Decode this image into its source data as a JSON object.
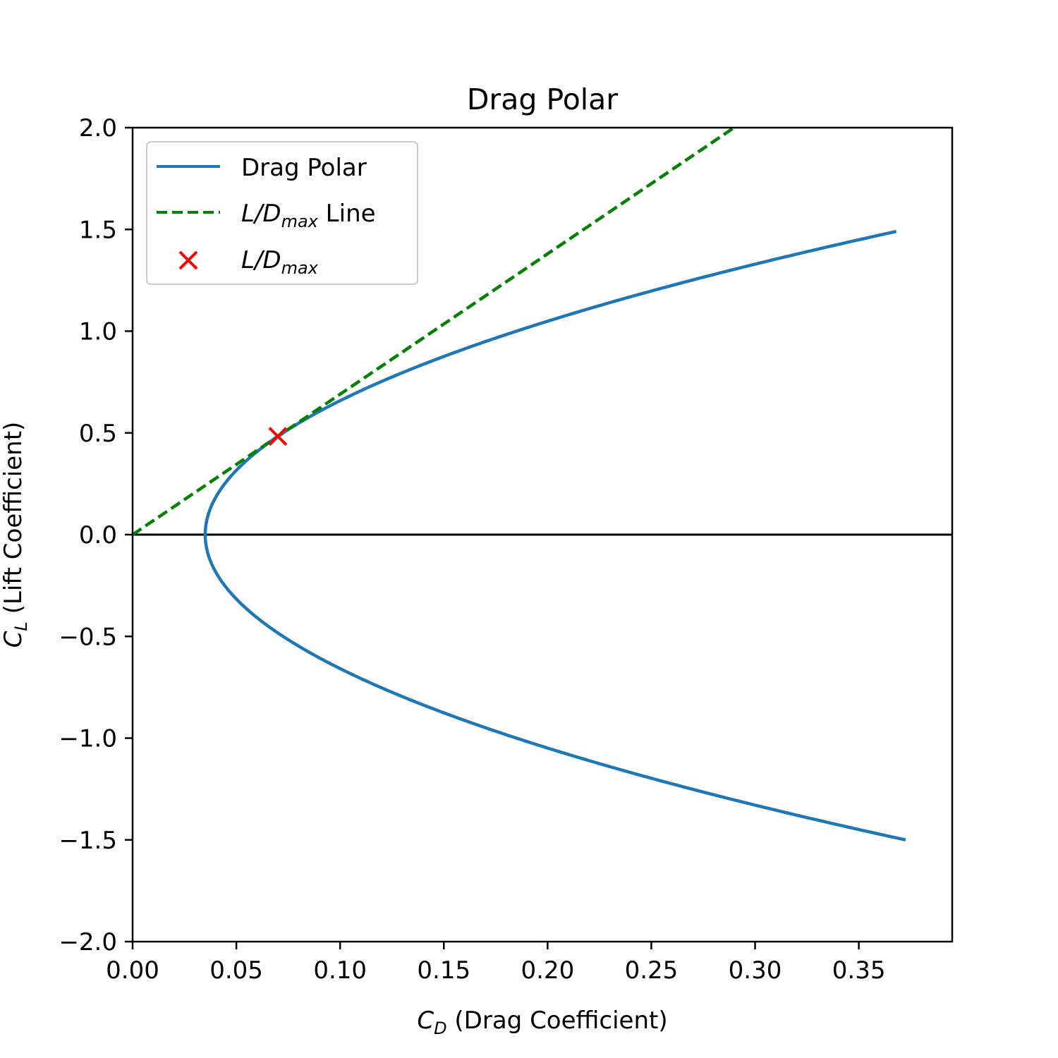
{
  "chart_data": {
    "type": "line",
    "title": "Drag Polar",
    "xlabel": {
      "symbol": "C",
      "sub": "D",
      "text": " (Drag Coefficient)"
    },
    "ylabel": {
      "symbol": "C",
      "sub": "L",
      "text": " (Lift Coefficient)"
    },
    "xlim": [
      0,
      0.395
    ],
    "ylim": [
      -2.0,
      2.0
    ],
    "xticks": [
      0.0,
      0.05,
      0.1,
      0.15,
      0.2,
      0.25,
      0.3,
      0.35
    ],
    "xtick_labels": [
      "0.00",
      "0.05",
      "0.10",
      "0.15",
      "0.20",
      "0.25",
      "0.30",
      "0.35"
    ],
    "yticks": [
      -2.0,
      -1.5,
      -1.0,
      -0.5,
      0.0,
      0.5,
      1.0,
      1.5,
      2.0
    ],
    "ytick_labels": [
      "−2.0",
      "−1.5",
      "−1.0",
      "−0.5",
      "0.0",
      "0.5",
      "1.0",
      "1.5",
      "2.0"
    ],
    "grid": false,
    "legend_position": "upper-left",
    "horizontal_reference_line": {
      "y": 0.0,
      "color": "#000000"
    },
    "series": [
      {
        "name": "Drag Polar",
        "kind": "line",
        "color": "#1f77b4",
        "style": "solid",
        "model": {
          "CD0": 0.035,
          "k": 0.15
        },
        "cl_range": [
          -1.5,
          1.49
        ],
        "points_sample": [
          {
            "x": 0.377,
            "y": -1.5
          },
          {
            "x": 0.185,
            "y": -1.0
          },
          {
            "x": 0.0725,
            "y": -0.5
          },
          {
            "x": 0.035,
            "y": 0.0
          },
          {
            "x": 0.0725,
            "y": 0.5
          },
          {
            "x": 0.185,
            "y": 1.0
          },
          {
            "x": 0.373,
            "y": 1.49
          }
        ]
      },
      {
        "name": "L/Dmax Line",
        "label_main": "L/D",
        "label_sub": "max",
        "label_suffix": " Line",
        "kind": "line",
        "color": "#008000",
        "style": "dashed",
        "slope": 6.9,
        "x_range": [
          0,
          0.29
        ]
      },
      {
        "name": "L/Dmax",
        "label_main": "L/D",
        "label_sub": "max",
        "label_suffix": "",
        "kind": "marker",
        "marker": "x",
        "color": "#ff0000",
        "points": [
          {
            "x": 0.07,
            "y": 0.483
          }
        ]
      }
    ]
  }
}
